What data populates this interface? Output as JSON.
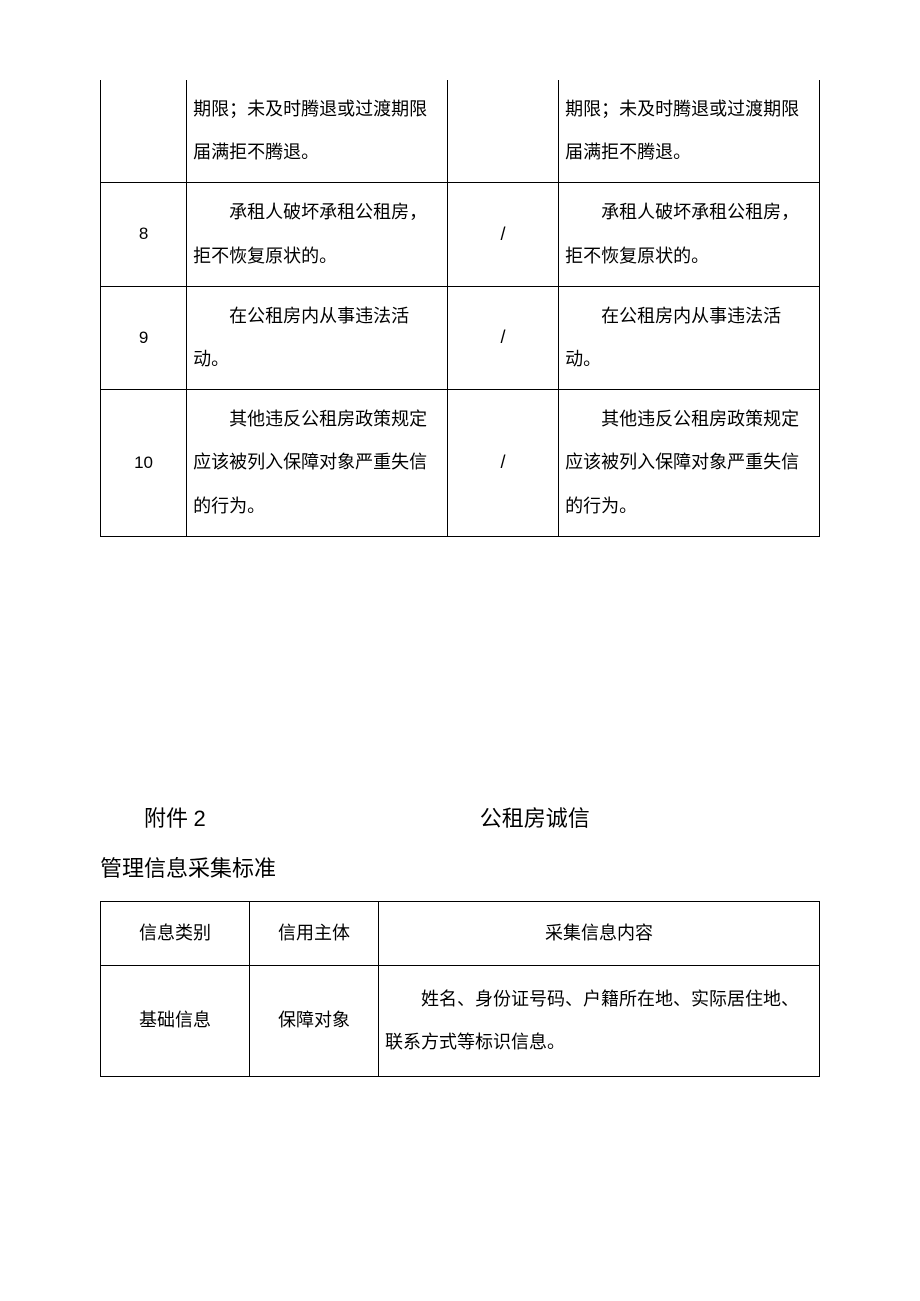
{
  "table1": {
    "row_cont": {
      "text": "期限；未及时腾退或过渡期限届满拒不腾退。"
    },
    "rows": [
      {
        "num": "8",
        "left": "承租人破坏承租公租房，拒不恢复原状的。",
        "mid": "/",
        "right": "承租人破坏承租公租房，拒不恢复原状的。"
      },
      {
        "num": "9",
        "left": "在公租房内从事违法活动。",
        "mid": "/",
        "right": "在公租房内从事违法活动。"
      },
      {
        "num": "10",
        "left": "其他违反公租房政策规定应该被列入保障对象严重失信的行为。",
        "mid": "/",
        "right": "其他违反公租房政策规定应该被列入保障对象严重失信的行为。"
      }
    ]
  },
  "section2": {
    "attachment_label": "附件",
    "attachment_num": "2",
    "title_right": "公租房诚信",
    "title_sub": "管理信息采集标准"
  },
  "table2": {
    "headers": {
      "c1": "信息类别",
      "c2": "信用主体",
      "c3": "采集信息内容"
    },
    "row1": {
      "c1": "基础信息",
      "c2": "保障对象",
      "c3": "姓名、身份证号码、户籍所在地、实际居住地、联系方式等标识信息。"
    }
  }
}
